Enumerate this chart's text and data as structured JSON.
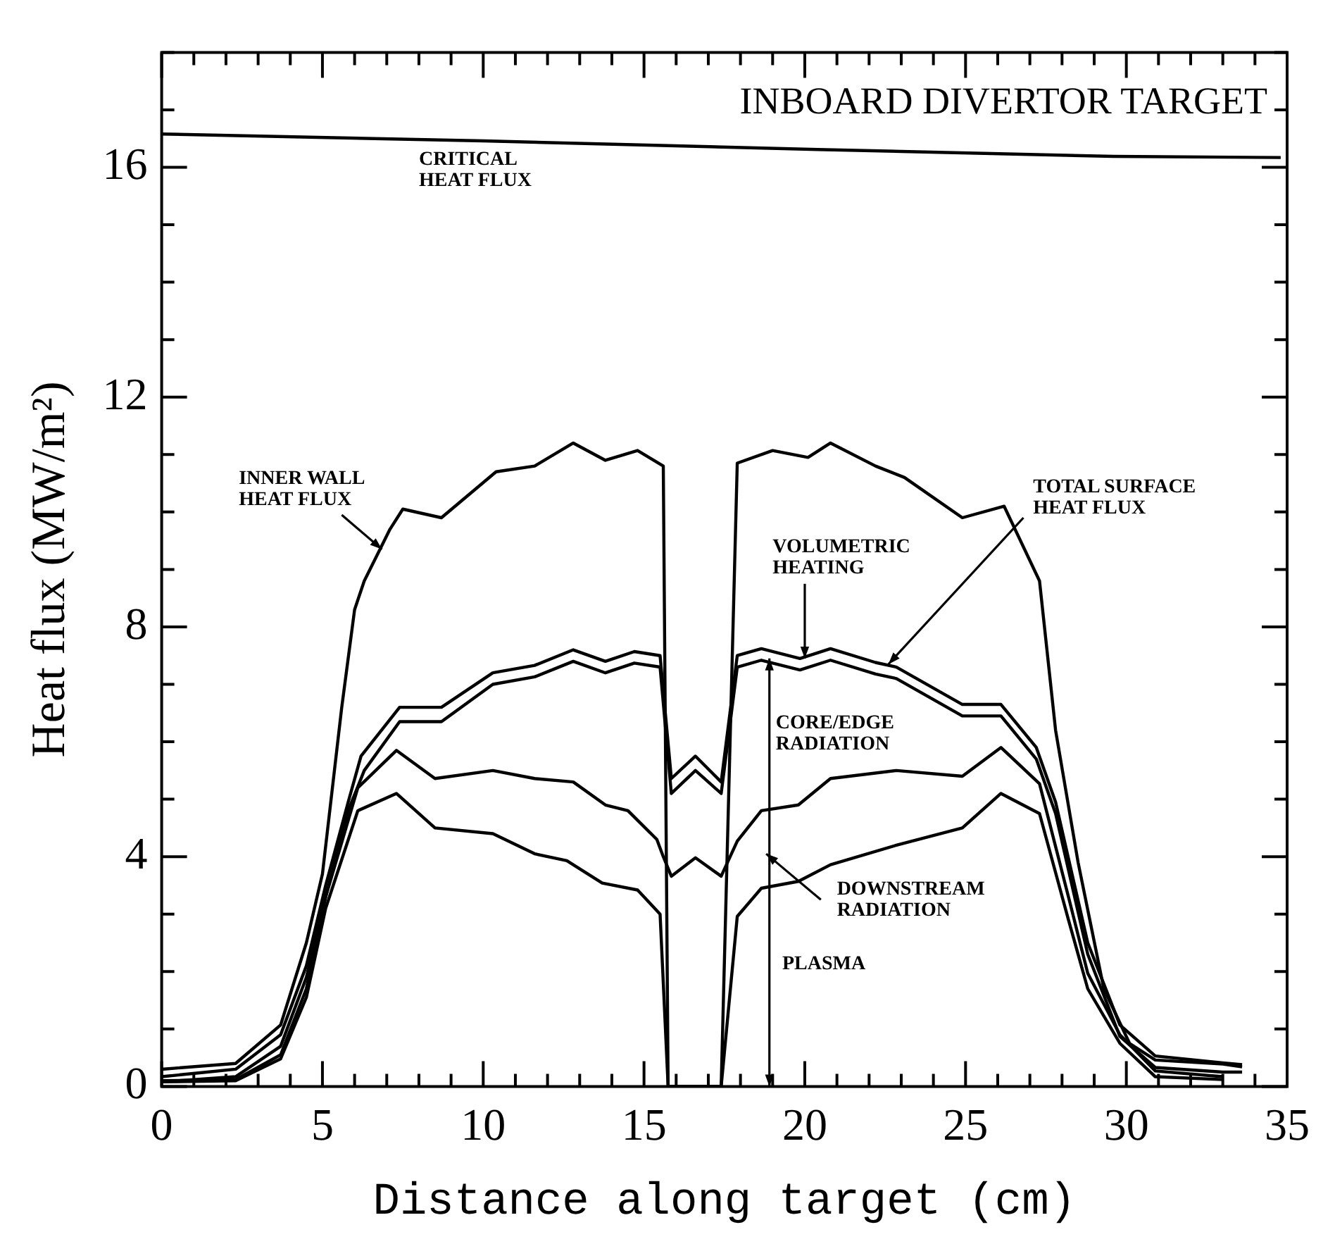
{
  "chart_data": {
    "type": "line",
    "title": "INBOARD DIVERTOR TARGET",
    "xlabel": "Distance along target (cm)",
    "ylabel": "Heat flux (MW/m²)",
    "xlim": [
      0,
      35
    ],
    "ylim": [
      0,
      18
    ],
    "xticks": [
      0,
      {
        "value": 1,
        "label": null
      },
      {
        "value": 2,
        "label": null
      },
      {
        "value": 3,
        "label": null
      },
      {
        "value": 4,
        "label": null
      },
      5,
      {
        "value": 6,
        "label": null
      },
      {
        "value": 7,
        "label": null
      },
      {
        "value": 8,
        "label": null
      },
      {
        "value": 9,
        "label": null
      },
      10,
      {
        "value": 11,
        "label": null
      },
      {
        "value": 12,
        "label": null
      },
      {
        "value": 13,
        "label": null
      },
      {
        "value": 14,
        "label": null
      },
      15,
      {
        "value": 16,
        "label": null
      },
      {
        "value": 17,
        "label": null
      },
      {
        "value": 18,
        "label": null
      },
      {
        "value": 19,
        "label": null
      },
      20,
      {
        "value": 21,
        "label": null
      },
      {
        "value": 22,
        "label": null
      },
      {
        "value": 23,
        "label": null
      },
      {
        "value": 24,
        "label": null
      },
      25,
      {
        "value": 26,
        "label": null
      },
      {
        "value": 27,
        "label": null
      },
      {
        "value": 28,
        "label": null
      },
      {
        "value": 29,
        "label": null
      },
      30,
      {
        "value": 31,
        "label": null
      },
      {
        "value": 32,
        "label": null
      },
      {
        "value": 33,
        "label": null
      },
      {
        "value": 34,
        "label": null
      },
      35
    ],
    "yticks": [
      0,
      {
        "value": 1,
        "label": null
      },
      {
        "value": 2,
        "label": null
      },
      {
        "value": 3,
        "label": null
      },
      4,
      {
        "value": 5,
        "label": null
      },
      {
        "value": 6,
        "label": null
      },
      {
        "value": 7,
        "label": null
      },
      8,
      {
        "value": 9,
        "label": null
      },
      {
        "value": 10,
        "label": null
      },
      {
        "value": 11,
        "label": null
      },
      12,
      {
        "value": 13,
        "label": null
      },
      {
        "value": 14,
        "label": null
      },
      {
        "value": 15,
        "label": null
      },
      16,
      {
        "value": 17,
        "label": null
      },
      {
        "value": 18,
        "label": null
      }
    ],
    "grid": false,
    "legend": false,
    "marker": "none",
    "line_style": "solid",
    "annotations": [
      "PLASMA"
    ],
    "series": [
      {
        "name": "CRITICAL HEAT FLUX",
        "color": "#000000",
        "x": [
          0,
          10,
          20.4,
          29.6,
          34.8
        ],
        "values": [
          16.58,
          16.46,
          16.31,
          16.19,
          16.17
        ]
      },
      {
        "name": "INNER WALL HEAT FLUX",
        "color": "#000000",
        "x": [
          0,
          2.3,
          3.7,
          4.5,
          5.0,
          5.6,
          6.0,
          6.3,
          7.1,
          7.5,
          8.7,
          10.4,
          11.6,
          12.8,
          13.8,
          14.8,
          15.6,
          15.75,
          17.4,
          17.9,
          19.0,
          20.1,
          20.8,
          22.2,
          23.1,
          24.9,
          26.2,
          27.3,
          27.8,
          28.5,
          29.3,
          30.1,
          30.9,
          33.0,
          33.6
        ],
        "values": [
          0.3,
          0.4,
          1.07,
          2.5,
          3.7,
          6.6,
          8.3,
          8.8,
          9.7,
          10.05,
          9.9,
          10.7,
          10.8,
          11.2,
          10.9,
          11.07,
          10.8,
          0,
          0,
          10.85,
          11.07,
          10.95,
          11.2,
          10.8,
          10.6,
          9.9,
          10.1,
          8.8,
          6.2,
          3.9,
          1.7,
          0.75,
          0.46,
          0.39,
          0.34
        ]
      },
      {
        "name": "TOTAL SURFACE HEAT FLUX",
        "color": "#000000",
        "x": [
          0,
          2.3,
          3.7,
          4.5,
          5.1,
          5.8,
          6.2,
          7.4,
          8.7,
          10.3,
          11.6,
          12.8,
          13.8,
          14.7,
          15.5,
          15.85,
          16.6,
          17.4,
          17.9,
          18.65,
          19.85,
          20.8,
          22.2,
          22.85,
          24.9,
          26.1,
          27.2,
          27.8,
          28.8,
          29.8,
          30.9,
          33.0,
          33.6
        ],
        "values": [
          0.17,
          0.3,
          0.9,
          2.1,
          3.5,
          4.95,
          5.75,
          6.6,
          6.6,
          7.2,
          7.33,
          7.6,
          7.4,
          7.57,
          7.5,
          5.36,
          5.75,
          5.3,
          7.5,
          7.62,
          7.45,
          7.62,
          7.38,
          7.3,
          6.65,
          6.65,
          5.9,
          4.95,
          2.5,
          1.07,
          0.53,
          0.41,
          0.38
        ]
      },
      {
        "name": "VOLUMETRIC HEATING",
        "color": "#000000",
        "x": [
          0,
          2.3,
          3.7,
          4.5,
          5.1,
          5.8,
          6.3,
          7.4,
          8.7,
          10.3,
          11.6,
          12.8,
          13.8,
          14.7,
          15.5,
          15.85,
          16.6,
          17.4,
          17.9,
          18.65,
          19.85,
          20.8,
          22.2,
          22.85,
          24.9,
          26.1,
          27.2,
          27.8,
          28.8,
          29.8,
          30.9,
          33.0,
          33.6
        ],
        "values": [
          0.08,
          0.17,
          0.7,
          1.9,
          3.3,
          4.8,
          5.5,
          6.35,
          6.35,
          7.0,
          7.13,
          7.4,
          7.2,
          7.37,
          7.3,
          5.1,
          5.5,
          5.1,
          7.3,
          7.42,
          7.25,
          7.42,
          7.18,
          7.1,
          6.45,
          6.45,
          5.7,
          4.75,
          2.3,
          0.87,
          0.33,
          0.25,
          0.25
        ]
      },
      {
        "name": "CORE/EDGE RADIATION",
        "color": "#000000",
        "x": [
          0,
          2.3,
          3.7,
          4.5,
          5.1,
          6.1,
          7.3,
          8.5,
          10.3,
          11.6,
          12.8,
          13.8,
          14.5,
          15.4,
          15.6,
          15.85,
          16.6,
          17.4,
          17.9,
          18.65,
          19.8,
          20.8,
          22.85,
          24.9,
          26.1,
          27.3,
          28.2,
          28.8,
          29.8,
          30.9,
          33.0
        ],
        "values": [
          0.1,
          0.12,
          0.55,
          1.7,
          3.3,
          5.2,
          5.85,
          5.36,
          5.5,
          5.36,
          5.3,
          4.9,
          4.8,
          4.3,
          4.0,
          3.66,
          3.98,
          3.66,
          4.27,
          4.8,
          4.9,
          5.36,
          5.5,
          5.4,
          5.9,
          5.27,
          3.3,
          1.97,
          0.9,
          0.27,
          0.17
        ]
      },
      {
        "name": "DOWNSTREAM RADIATION",
        "color": "#000000",
        "x": [
          0,
          2.3,
          3.7,
          4.5,
          5.1,
          6.1,
          7.3,
          8.5,
          10.3,
          11.6,
          12.6,
          13.7,
          14.8,
          15.5,
          15.75,
          17.4,
          17.9,
          18.65,
          19.8,
          20.8,
          22.85,
          24.9,
          26.1,
          27.3,
          28.2,
          28.8,
          29.8,
          30.9,
          33.0
        ],
        "values": [
          0.08,
          0.1,
          0.48,
          1.55,
          3.1,
          4.8,
          5.1,
          4.5,
          4.4,
          4.05,
          3.93,
          3.54,
          3.42,
          3.0,
          0,
          0,
          2.96,
          3.45,
          3.57,
          3.86,
          4.2,
          4.5,
          5.1,
          4.75,
          2.9,
          1.7,
          0.75,
          0.17,
          0.12
        ]
      }
    ]
  }
}
